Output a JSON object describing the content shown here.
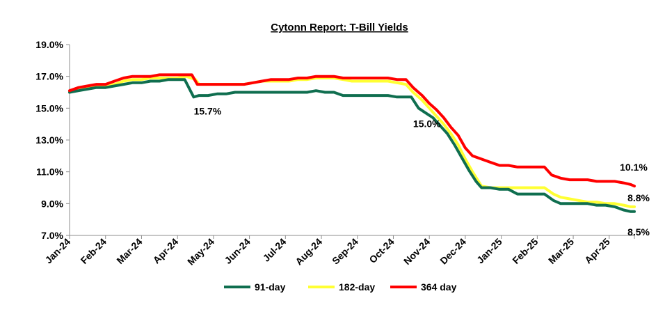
{
  "chart_data": {
    "type": "line",
    "title": "Cytonn Report: T-Bill Yields",
    "xlabel": "",
    "ylabel": "",
    "ylim": [
      7.0,
      19.0
    ],
    "yticks": [
      "7.0%",
      "9.0%",
      "11.0%",
      "13.0%",
      "15.0%",
      "17.0%",
      "19.0%"
    ],
    "ytick_values": [
      7,
      9,
      11,
      13,
      15,
      17,
      19
    ],
    "categories": [
      "Jan-24",
      "Feb-24",
      "Mar-24",
      "Apr-24",
      "May-24",
      "Jun-24",
      "Jul-24",
      "Aug-24",
      "Sep-24",
      "Oct-24",
      "Nov-24",
      "Dec-24",
      "Jan-25",
      "Feb-25",
      "Mar-25",
      "Apr-25"
    ],
    "x_range": [
      0,
      15.7
    ],
    "grid": "none",
    "legend": "bottom",
    "series": [
      {
        "name": "91-day",
        "color": "#0f6e4f",
        "points": [
          [
            0,
            16.0
          ],
          [
            0.25,
            16.1
          ],
          [
            0.5,
            16.2
          ],
          [
            0.75,
            16.3
          ],
          [
            1.0,
            16.3
          ],
          [
            1.25,
            16.4
          ],
          [
            1.5,
            16.5
          ],
          [
            1.75,
            16.6
          ],
          [
            2.0,
            16.6
          ],
          [
            2.25,
            16.7
          ],
          [
            2.5,
            16.7
          ],
          [
            2.75,
            16.8
          ],
          [
            3.0,
            16.8
          ],
          [
            3.2,
            16.8
          ],
          [
            3.45,
            15.7
          ],
          [
            3.6,
            15.8
          ],
          [
            3.85,
            15.8
          ],
          [
            4.1,
            15.9
          ],
          [
            4.35,
            15.9
          ],
          [
            4.6,
            16.0
          ],
          [
            4.85,
            16.0
          ],
          [
            5.1,
            16.0
          ],
          [
            5.35,
            16.0
          ],
          [
            5.6,
            16.0
          ],
          [
            5.85,
            16.0
          ],
          [
            6.1,
            16.0
          ],
          [
            6.35,
            16.0
          ],
          [
            6.6,
            16.0
          ],
          [
            6.85,
            16.1
          ],
          [
            7.1,
            16.0
          ],
          [
            7.35,
            16.0
          ],
          [
            7.6,
            15.8
          ],
          [
            7.85,
            15.8
          ],
          [
            8.1,
            15.8
          ],
          [
            8.35,
            15.8
          ],
          [
            8.6,
            15.8
          ],
          [
            8.85,
            15.8
          ],
          [
            9.1,
            15.7
          ],
          [
            9.3,
            15.7
          ],
          [
            9.5,
            15.7
          ],
          [
            9.7,
            15.0
          ],
          [
            9.9,
            14.7
          ],
          [
            10.1,
            14.4
          ],
          [
            10.3,
            13.9
          ],
          [
            10.5,
            13.4
          ],
          [
            10.7,
            12.7
          ],
          [
            10.9,
            11.9
          ],
          [
            11.1,
            11.1
          ],
          [
            11.3,
            10.4
          ],
          [
            11.45,
            10.0
          ],
          [
            11.7,
            10.0
          ],
          [
            11.95,
            9.9
          ],
          [
            12.2,
            9.9
          ],
          [
            12.45,
            9.6
          ],
          [
            12.7,
            9.6
          ],
          [
            12.95,
            9.6
          ],
          [
            13.2,
            9.6
          ],
          [
            13.45,
            9.2
          ],
          [
            13.65,
            9.0
          ],
          [
            13.9,
            9.0
          ],
          [
            14.15,
            9.0
          ],
          [
            14.4,
            9.0
          ],
          [
            14.65,
            8.9
          ],
          [
            14.9,
            8.9
          ],
          [
            15.15,
            8.8
          ],
          [
            15.4,
            8.6
          ],
          [
            15.6,
            8.5
          ],
          [
            15.7,
            8.5
          ]
        ]
      },
      {
        "name": "182-day",
        "color": "#ffff33",
        "points": [
          [
            0,
            16.0
          ],
          [
            0.25,
            16.2
          ],
          [
            0.5,
            16.3
          ],
          [
            0.75,
            16.4
          ],
          [
            1.0,
            16.4
          ],
          [
            1.25,
            16.5
          ],
          [
            1.5,
            16.7
          ],
          [
            1.75,
            16.8
          ],
          [
            2.0,
            16.8
          ],
          [
            2.25,
            16.9
          ],
          [
            2.5,
            16.9
          ],
          [
            2.75,
            16.9
          ],
          [
            3.0,
            16.9
          ],
          [
            3.25,
            17.0
          ],
          [
            3.5,
            16.8
          ],
          [
            3.6,
            16.5
          ],
          [
            3.85,
            16.5
          ],
          [
            4.1,
            16.5
          ],
          [
            4.35,
            16.5
          ],
          [
            4.6,
            16.5
          ],
          [
            4.85,
            16.5
          ],
          [
            5.1,
            16.6
          ],
          [
            5.35,
            16.7
          ],
          [
            5.6,
            16.7
          ],
          [
            5.85,
            16.7
          ],
          [
            6.1,
            16.7
          ],
          [
            6.35,
            16.8
          ],
          [
            6.6,
            16.8
          ],
          [
            6.85,
            16.9
          ],
          [
            7.1,
            16.9
          ],
          [
            7.35,
            16.9
          ],
          [
            7.6,
            16.8
          ],
          [
            7.85,
            16.7
          ],
          [
            8.1,
            16.7
          ],
          [
            8.35,
            16.7
          ],
          [
            8.6,
            16.7
          ],
          [
            8.85,
            16.7
          ],
          [
            9.1,
            16.6
          ],
          [
            9.35,
            16.5
          ],
          [
            9.55,
            16.0
          ],
          [
            9.8,
            15.5
          ],
          [
            10.0,
            15.0
          ],
          [
            10.2,
            14.5
          ],
          [
            10.4,
            14.0
          ],
          [
            10.6,
            13.4
          ],
          [
            10.8,
            12.7
          ],
          [
            11.0,
            11.8
          ],
          [
            11.2,
            11.0
          ],
          [
            11.45,
            10.1
          ],
          [
            11.7,
            10.0
          ],
          [
            11.95,
            10.0
          ],
          [
            12.2,
            10.0
          ],
          [
            12.45,
            10.0
          ],
          [
            12.7,
            10.0
          ],
          [
            12.95,
            10.0
          ],
          [
            13.2,
            10.0
          ],
          [
            13.45,
            9.6
          ],
          [
            13.65,
            9.4
          ],
          [
            13.9,
            9.3
          ],
          [
            14.15,
            9.2
          ],
          [
            14.4,
            9.1
          ],
          [
            14.65,
            9.1
          ],
          [
            14.9,
            9.0
          ],
          [
            15.15,
            9.0
          ],
          [
            15.4,
            8.9
          ],
          [
            15.6,
            8.8
          ],
          [
            15.7,
            8.8
          ]
        ]
      },
      {
        "name": "364 day",
        "color": "#ff0000",
        "points": [
          [
            0,
            16.1
          ],
          [
            0.25,
            16.3
          ],
          [
            0.5,
            16.4
          ],
          [
            0.75,
            16.5
          ],
          [
            1.0,
            16.5
          ],
          [
            1.25,
            16.7
          ],
          [
            1.5,
            16.9
          ],
          [
            1.75,
            17.0
          ],
          [
            2.0,
            17.0
          ],
          [
            2.25,
            17.0
          ],
          [
            2.5,
            17.1
          ],
          [
            2.75,
            17.1
          ],
          [
            3.0,
            17.1
          ],
          [
            3.2,
            17.1
          ],
          [
            3.4,
            17.1
          ],
          [
            3.55,
            16.5
          ],
          [
            3.85,
            16.5
          ],
          [
            4.1,
            16.5
          ],
          [
            4.35,
            16.5
          ],
          [
            4.6,
            16.5
          ],
          [
            4.85,
            16.5
          ],
          [
            5.1,
            16.6
          ],
          [
            5.35,
            16.7
          ],
          [
            5.6,
            16.8
          ],
          [
            5.85,
            16.8
          ],
          [
            6.1,
            16.8
          ],
          [
            6.35,
            16.9
          ],
          [
            6.6,
            16.9
          ],
          [
            6.85,
            17.0
          ],
          [
            7.1,
            17.0
          ],
          [
            7.35,
            17.0
          ],
          [
            7.6,
            16.9
          ],
          [
            7.85,
            16.9
          ],
          [
            8.1,
            16.9
          ],
          [
            8.35,
            16.9
          ],
          [
            8.6,
            16.9
          ],
          [
            8.85,
            16.9
          ],
          [
            9.1,
            16.8
          ],
          [
            9.35,
            16.8
          ],
          [
            9.55,
            16.3
          ],
          [
            9.8,
            15.8
          ],
          [
            10.0,
            15.3
          ],
          [
            10.2,
            14.9
          ],
          [
            10.4,
            14.4
          ],
          [
            10.6,
            13.8
          ],
          [
            10.8,
            13.3
          ],
          [
            11.0,
            12.5
          ],
          [
            11.2,
            12.0
          ],
          [
            11.45,
            11.8
          ],
          [
            11.7,
            11.6
          ],
          [
            11.95,
            11.4
          ],
          [
            12.2,
            11.4
          ],
          [
            12.45,
            11.3
          ],
          [
            12.7,
            11.3
          ],
          [
            12.95,
            11.3
          ],
          [
            13.2,
            11.3
          ],
          [
            13.4,
            10.8
          ],
          [
            13.65,
            10.6
          ],
          [
            13.9,
            10.5
          ],
          [
            14.15,
            10.5
          ],
          [
            14.4,
            10.5
          ],
          [
            14.65,
            10.4
          ],
          [
            14.9,
            10.4
          ],
          [
            15.15,
            10.4
          ],
          [
            15.4,
            10.3
          ],
          [
            15.6,
            10.2
          ],
          [
            15.7,
            10.1
          ]
        ]
      }
    ],
    "annotations": [
      {
        "text": "15.7%",
        "x": 3.55,
        "y": 15.7
      },
      {
        "text": "15.0%",
        "x": 9.55,
        "y": 15.0
      },
      {
        "text": "10.1%",
        "x": 15.6,
        "y": 10.1
      },
      {
        "text": "8.8%",
        "x": 15.7,
        "y": 8.8
      },
      {
        "text": "8.5%",
        "x": 15.7,
        "y": 8.5
      }
    ]
  }
}
